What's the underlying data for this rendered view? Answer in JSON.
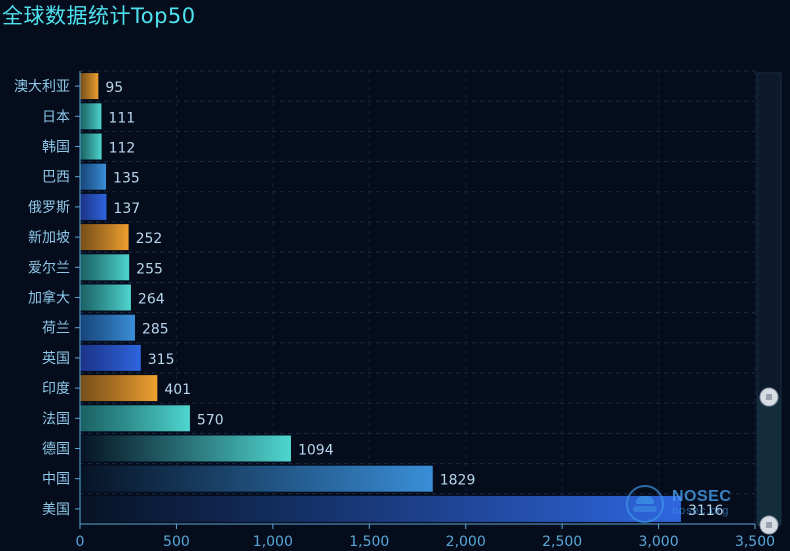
{
  "chart_data": {
    "type": "bar",
    "orientation": "horizontal",
    "title": "全球数据统计Top50",
    "categories": [
      "澳大利亚",
      "日本",
      "韩国",
      "巴西",
      "俄罗斯",
      "新加坡",
      "爱尔兰",
      "加拿大",
      "荷兰",
      "英国",
      "印度",
      "法国",
      "德国",
      "中国",
      "美国"
    ],
    "values": [
      95,
      111,
      112,
      135,
      137,
      252,
      255,
      264,
      285,
      315,
      401,
      570,
      1094,
      1829,
      3116
    ],
    "xlim": [
      0,
      3500
    ],
    "x_ticks": [
      0,
      500,
      1000,
      1500,
      2000,
      2500,
      3000,
      3500
    ],
    "x_tick_labels": [
      "0",
      "500",
      "1,000",
      "1,500",
      "2,000",
      "2,500",
      "3,000",
      "3,500"
    ],
    "grid": true,
    "data_labels": true,
    "colors": {
      "orange": [
        "#8a5a18",
        "#f0a030"
      ],
      "teal": [
        "#1e6f70",
        "#4fd6cf"
      ],
      "blue": [
        "#1b4f8a",
        "#3a8fd8"
      ],
      "indigo": [
        "#1f3a9a",
        "#2f66e0"
      ],
      "label": "#8fc8e8",
      "axis": "#5aa8d8"
    },
    "bar_color_keys": [
      "orange",
      "teal",
      "teal",
      "blue",
      "indigo",
      "orange",
      "teal",
      "teal",
      "blue",
      "indigo",
      "orange",
      "teal",
      "teal",
      "blue",
      "indigo"
    ]
  },
  "zoom_slider": {
    "start": 0.0,
    "end": 1.0
  },
  "watermark": {
    "main": "NOSEC",
    "sub": "nosec.org"
  }
}
